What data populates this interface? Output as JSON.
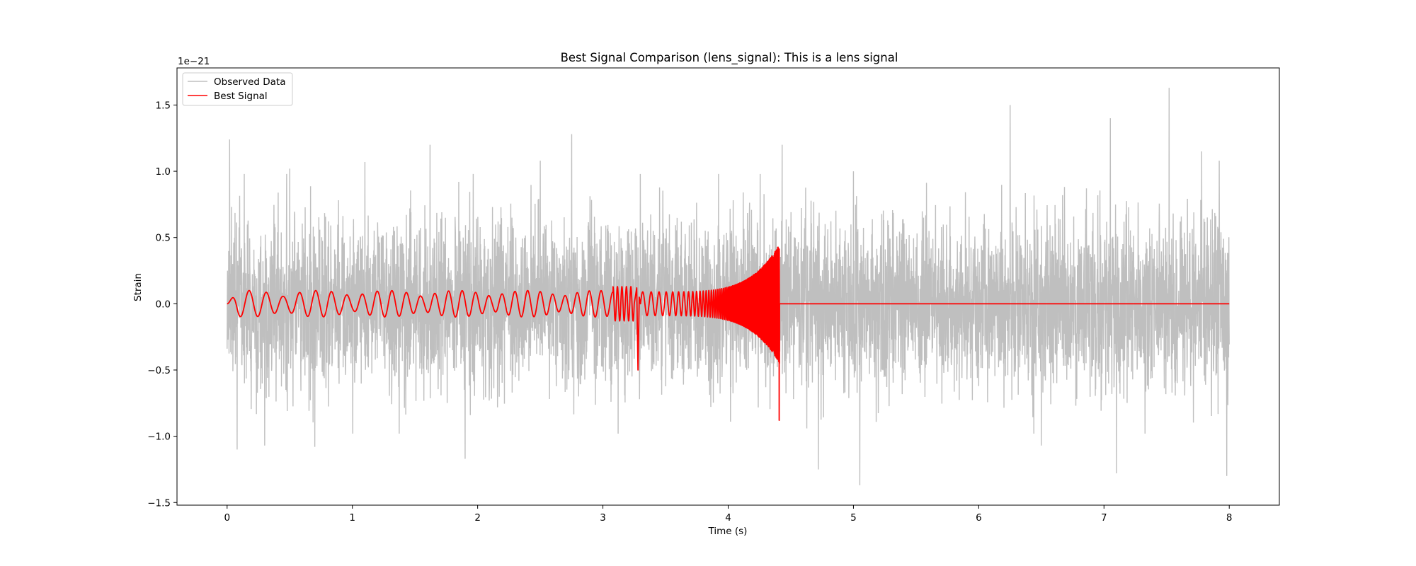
{
  "chart_data": {
    "type": "line",
    "title": "Best Signal Comparison (lens_signal): This is a lens signal",
    "xlabel": "Time (s)",
    "ylabel": "Strain",
    "offset_label": "1e−21",
    "xlim": [
      -0.4,
      8.4
    ],
    "ylim": [
      -1.52,
      1.78
    ],
    "x_ticks": [
      0,
      1,
      2,
      3,
      4,
      5,
      6,
      7,
      8
    ],
    "y_ticks": [
      -1.5,
      -1.0,
      -0.5,
      0.0,
      0.5,
      1.0,
      1.5
    ],
    "x_tick_labels": [
      "0",
      "1",
      "2",
      "3",
      "4",
      "5",
      "6",
      "7",
      "8"
    ],
    "y_tick_labels": [
      "−1.5",
      "−1.0",
      "−0.5",
      "0.0",
      "0.5",
      "1.0",
      "1.5"
    ],
    "grid": false,
    "legend_position": "top-left",
    "series": [
      {
        "name": "Observed Data",
        "color": "#bfbfbf",
        "peaks_x": [
          0.02,
          0.5,
          1.1,
          1.62,
          2.5,
          2.75,
          4.43,
          5.0,
          6.25,
          7.05,
          7.52,
          7.78,
          7.92
        ],
        "peaks_y": [
          1.24,
          1.02,
          1.07,
          1.2,
          1.08,
          1.28,
          1.2,
          1.0,
          1.5,
          1.4,
          1.63,
          1.15,
          1.08
        ],
        "troughs_x": [
          0.08,
          0.3,
          0.7,
          1.9,
          4.72,
          5.05,
          6.5,
          7.1,
          7.98
        ],
        "troughs_y": [
          -1.1,
          -1.07,
          -1.08,
          -1.17,
          -1.25,
          -1.37,
          -1.07,
          -1.28,
          -1.3
        ],
        "x_range": [
          0,
          8
        ]
      },
      {
        "name": "Best Signal",
        "color": "#ff0000",
        "segment_a_x_range": [
          0,
          3.25
        ],
        "segment_a_amplitude": 0.1,
        "segment_a_event_x": 3.28,
        "segment_a_event_min": -0.5,
        "segment_b_x_range": [
          3.3,
          4.41
        ],
        "segment_b_amplitude_start": 0.09,
        "segment_b_amplitude_end": 0.45,
        "segment_b_min": -0.88,
        "flat_x_range": [
          4.41,
          8
        ],
        "flat_value": 0.0
      }
    ]
  }
}
